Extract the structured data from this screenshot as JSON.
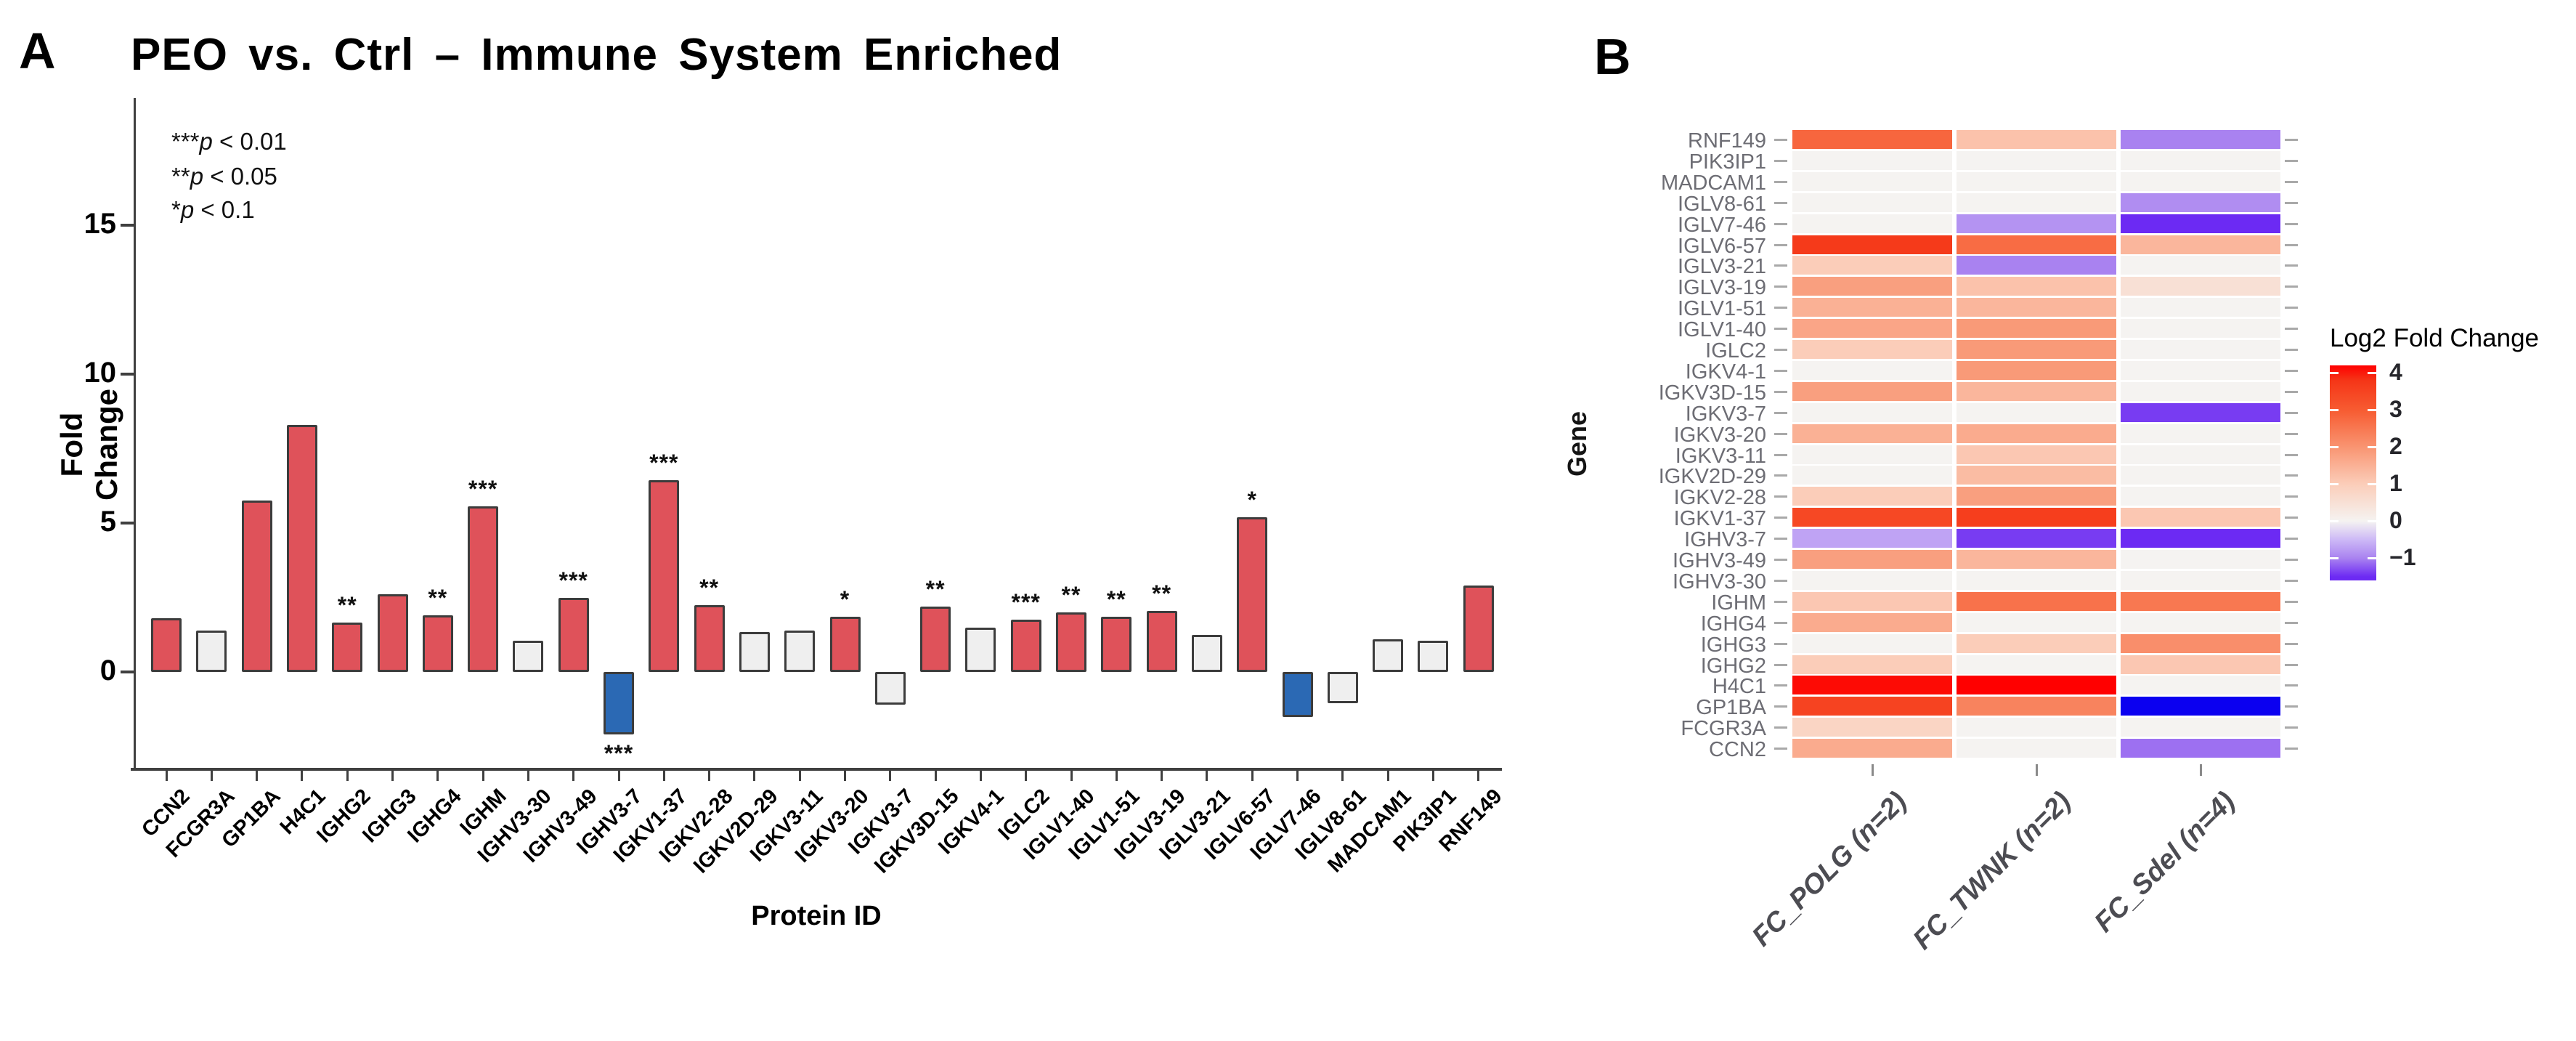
{
  "panels": {
    "a": "A",
    "b": "B"
  },
  "chart_data": [
    {
      "type": "bar",
      "panel": "A",
      "title": "PEO vs. Ctrl – Immune System Enriched",
      "xlabel": "Protein ID",
      "ylabel": "Fold Change",
      "ylim": [
        -3.3,
        16
      ],
      "yticks": [
        0,
        5,
        10,
        15
      ],
      "sig_legend": [
        {
          "stars": "***",
          "p": "p",
          "rest": " < 0.01"
        },
        {
          "stars": "**",
          "p": "p",
          "rest": " < 0.05"
        },
        {
          "stars": "*",
          "p": "p",
          "rest": " < 0.1"
        }
      ],
      "colors": {
        "up": "#DF525A",
        "neutral": "#EFEFEF",
        "down": "#2B69B4",
        "border": "#3c3c3c"
      },
      "bars": [
        {
          "id": "CCN2",
          "value": 1.8,
          "class": "up",
          "sig": ""
        },
        {
          "id": "FCGR3A",
          "value": 1.4,
          "class": "neutral",
          "sig": ""
        },
        {
          "id": "GP1BA",
          "value": 5.75,
          "class": "up",
          "sig": ""
        },
        {
          "id": "H4C1",
          "value": 8.3,
          "class": "up",
          "sig": ""
        },
        {
          "id": "IGHG2",
          "value": 1.65,
          "class": "up",
          "sig": "**"
        },
        {
          "id": "IGHG3",
          "value": 2.6,
          "class": "up",
          "sig": ""
        },
        {
          "id": "IGHG4",
          "value": 1.9,
          "class": "up",
          "sig": "**"
        },
        {
          "id": "IGHM",
          "value": 5.55,
          "class": "up",
          "sig": "***"
        },
        {
          "id": "IGHV3-30",
          "value": 1.05,
          "class": "neutral",
          "sig": ""
        },
        {
          "id": "IGHV3-49",
          "value": 2.5,
          "class": "up",
          "sig": "***"
        },
        {
          "id": "IGHV3-7",
          "value": -2.1,
          "class": "down",
          "sig": "***"
        },
        {
          "id": "IGKV1-37",
          "value": 6.45,
          "class": "up",
          "sig": "***"
        },
        {
          "id": "IGKV2-28",
          "value": 2.25,
          "class": "up",
          "sig": "**"
        },
        {
          "id": "IGKV2D-29",
          "value": 1.35,
          "class": "neutral",
          "sig": ""
        },
        {
          "id": "IGKV3-11",
          "value": 1.4,
          "class": "neutral",
          "sig": ""
        },
        {
          "id": "IGKV3-20",
          "value": 1.85,
          "class": "up",
          "sig": "*"
        },
        {
          "id": "IGKV3-7",
          "value": -1.1,
          "class": "neutral",
          "sig": ""
        },
        {
          "id": "IGKV3D-15",
          "value": 2.2,
          "class": "up",
          "sig": "**"
        },
        {
          "id": "IGKV4-1",
          "value": 1.5,
          "class": "neutral",
          "sig": ""
        },
        {
          "id": "IGLC2",
          "value": 1.75,
          "class": "up",
          "sig": "***"
        },
        {
          "id": "IGLV1-40",
          "value": 2.0,
          "class": "up",
          "sig": "**"
        },
        {
          "id": "IGLV1-51",
          "value": 1.85,
          "class": "up",
          "sig": "**"
        },
        {
          "id": "IGLV3-19",
          "value": 2.05,
          "class": "up",
          "sig": "**"
        },
        {
          "id": "IGLV3-21",
          "value": 1.25,
          "class": "neutral",
          "sig": ""
        },
        {
          "id": "IGLV6-57",
          "value": 5.2,
          "class": "up",
          "sig": "*"
        },
        {
          "id": "IGLV7-46",
          "value": -1.5,
          "class": "down",
          "sig": ""
        },
        {
          "id": "IGLV8-61",
          "value": -1.05,
          "class": "neutral",
          "sig": ""
        },
        {
          "id": "MADCAM1",
          "value": 1.1,
          "class": "neutral",
          "sig": ""
        },
        {
          "id": "PIK3IP1",
          "value": 1.05,
          "class": "neutral",
          "sig": ""
        },
        {
          "id": "RNF149",
          "value": 2.9,
          "class": "up",
          "sig": ""
        }
      ]
    },
    {
      "type": "heatmap",
      "panel": "B",
      "ylabel": "Gene",
      "columns": [
        "FC_POLG (n=2)",
        "FC_TWNK (n=2)",
        "FC_Sdel (n=4)"
      ],
      "rows": [
        "RNF149",
        "PIK3IP1",
        "MADCAM1",
        "IGLV8-61",
        "IGLV7-46",
        "IGLV6-57",
        "IGLV3-21",
        "IGLV3-19",
        "IGLV1-51",
        "IGLV1-40",
        "IGLC2",
        "IGKV4-1",
        "IGKV3D-15",
        "IGKV3-7",
        "IGKV3-20",
        "IGKV3-11",
        "IGKV2D-29",
        "IGKV2-28",
        "IGKV1-37",
        "IGHV3-7",
        "IGHV3-49",
        "IGHV3-30",
        "IGHM",
        "IGHG4",
        "IGHG3",
        "IGHG2",
        "H4C1",
        "GP1BA",
        "FCGR3A",
        "CCN2"
      ],
      "values": [
        [
          2.8,
          1.2,
          -1.0
        ],
        [
          0,
          0,
          0
        ],
        [
          0,
          0,
          0
        ],
        [
          0,
          0,
          -0.9
        ],
        [
          0,
          -0.85,
          -1.5
        ],
        [
          3.7,
          2.7,
          1.4
        ],
        [
          1.0,
          -1.0,
          0
        ],
        [
          1.8,
          1.2,
          0.5
        ],
        [
          1.5,
          1.4,
          0
        ],
        [
          1.7,
          1.9,
          0
        ],
        [
          1.0,
          1.9,
          0
        ],
        [
          0,
          1.9,
          0
        ],
        [
          1.8,
          1.4,
          0
        ],
        [
          0,
          0,
          -1.4
        ],
        [
          1.5,
          1.6,
          0
        ],
        [
          0,
          1.1,
          0
        ],
        [
          0,
          1.3,
          0
        ],
        [
          1.0,
          1.8,
          0
        ],
        [
          3.4,
          3.6,
          1.1
        ],
        [
          -0.7,
          -1.4,
          -1.5
        ],
        [
          1.8,
          1.4,
          0
        ],
        [
          0,
          0,
          0
        ],
        [
          1.1,
          2.6,
          2.5
        ],
        [
          1.6,
          0,
          0
        ],
        [
          0,
          1.0,
          2.1
        ],
        [
          1.0,
          0,
          1.1
        ],
        [
          4.2,
          4.3,
          0
        ],
        [
          3.5,
          2.3,
          "b"
        ],
        [
          0.8,
          0,
          0
        ],
        [
          1.6,
          0,
          -1.1
        ]
      ],
      "special_blue": "#0B00F0",
      "colormap_stops": [
        [
          4.3,
          "#FF0000"
        ],
        [
          3.8,
          "#F53517"
        ],
        [
          3.0,
          "#F75B31"
        ],
        [
          2.0,
          "#F99471"
        ],
        [
          1.0,
          "#FBCDB9"
        ],
        [
          0.0,
          "#F5F3F1"
        ],
        [
          -0.5,
          "#CDB9F6"
        ],
        [
          -1.0,
          "#A982F0"
        ],
        [
          -1.5,
          "#6C2AF3"
        ]
      ],
      "legend": {
        "title": "Log2 Fold Change",
        "ticks": [
          4,
          3,
          2,
          1,
          0,
          -1
        ]
      }
    }
  ]
}
